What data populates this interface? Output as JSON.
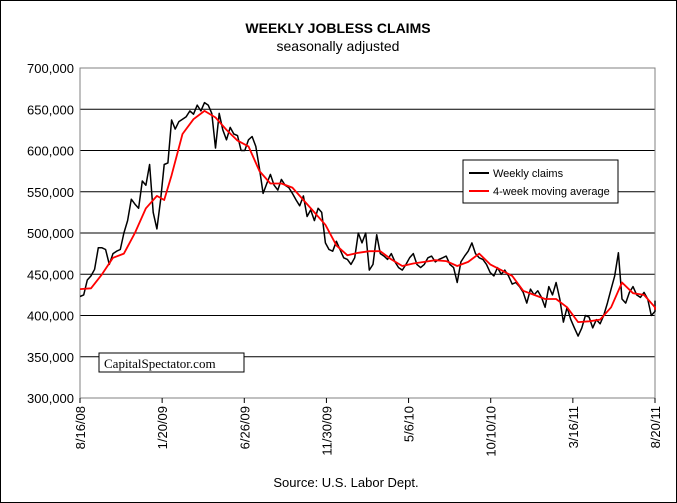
{
  "chart_data": {
    "type": "line",
    "title": "WEEKLY JOBLESS CLAIMS",
    "subtitle": "seasonally adjusted",
    "source": "Source: U.S. Labor Dept.",
    "watermark": "CapitalSpectator.com",
    "ylim": [
      300000,
      700000
    ],
    "yticks": [
      "300,000",
      "350,000",
      "400,000",
      "450,000",
      "500,000",
      "550,000",
      "600,000",
      "650,000",
      "700,000"
    ],
    "ytick_values": [
      300000,
      350000,
      400000,
      450000,
      500000,
      550000,
      600000,
      650000,
      700000
    ],
    "xlim": [
      "2008-08-16",
      "2011-08-20"
    ],
    "xticks": [
      "8/16/08",
      "1/20/09",
      "6/26/09",
      "11/30/09",
      "5/6/10",
      "10/10/10",
      "3/16/11",
      "8/20/11"
    ],
    "xtick_dates": [
      "2008-08-16",
      "2009-01-20",
      "2009-06-26",
      "2009-11-30",
      "2010-05-06",
      "2010-10-10",
      "2011-03-16",
      "2011-08-20"
    ],
    "grid": "horizontal",
    "legend": "right",
    "series": [
      {
        "name": "Weekly claims",
        "color": "#000000",
        "points": [
          [
            "2008-08-16",
            423000
          ],
          [
            "2008-08-23",
            425000
          ],
          [
            "2008-08-30",
            443000
          ],
          [
            "2008-09-06",
            448000
          ],
          [
            "2008-09-13",
            456000
          ],
          [
            "2008-09-20",
            482000
          ],
          [
            "2008-09-27",
            482000
          ],
          [
            "2008-10-04",
            480000
          ],
          [
            "2008-10-11",
            462000
          ],
          [
            "2008-10-18",
            475000
          ],
          [
            "2008-10-25",
            478000
          ],
          [
            "2008-11-01",
            480000
          ],
          [
            "2008-11-08",
            500000
          ],
          [
            "2008-11-15",
            515000
          ],
          [
            "2008-11-22",
            541000
          ],
          [
            "2008-11-29",
            535000
          ],
          [
            "2008-12-06",
            530000
          ],
          [
            "2008-12-13",
            563000
          ],
          [
            "2008-12-20",
            558000
          ],
          [
            "2008-12-27",
            583000
          ],
          [
            "2009-01-03",
            525000
          ],
          [
            "2009-01-10",
            505000
          ],
          [
            "2009-01-17",
            540000
          ],
          [
            "2009-01-24",
            583000
          ],
          [
            "2009-01-31",
            585000
          ],
          [
            "2009-02-07",
            637000
          ],
          [
            "2009-02-14",
            626000
          ],
          [
            "2009-02-21",
            635000
          ],
          [
            "2009-02-28",
            638000
          ],
          [
            "2009-03-07",
            641000
          ],
          [
            "2009-03-14",
            648000
          ],
          [
            "2009-03-21",
            644000
          ],
          [
            "2009-03-28",
            655000
          ],
          [
            "2009-04-04",
            648000
          ],
          [
            "2009-04-11",
            658000
          ],
          [
            "2009-04-18",
            655000
          ],
          [
            "2009-04-25",
            645000
          ],
          [
            "2009-05-02",
            603000
          ],
          [
            "2009-05-09",
            645000
          ],
          [
            "2009-05-16",
            625000
          ],
          [
            "2009-05-23",
            613000
          ],
          [
            "2009-05-30",
            628000
          ],
          [
            "2009-06-06",
            620000
          ],
          [
            "2009-06-13",
            618000
          ],
          [
            "2009-06-20",
            600000
          ],
          [
            "2009-06-27",
            600000
          ],
          [
            "2009-07-04",
            613000
          ],
          [
            "2009-07-11",
            617000
          ],
          [
            "2009-07-18",
            605000
          ],
          [
            "2009-07-25",
            578000
          ],
          [
            "2009-08-01",
            548000
          ],
          [
            "2009-08-08",
            560000
          ],
          [
            "2009-08-15",
            571000
          ],
          [
            "2009-08-22",
            558000
          ],
          [
            "2009-08-29",
            552000
          ],
          [
            "2009-09-05",
            565000
          ],
          [
            "2009-09-12",
            558000
          ],
          [
            "2009-09-19",
            555000
          ],
          [
            "2009-09-26",
            548000
          ],
          [
            "2009-10-03",
            540000
          ],
          [
            "2009-10-10",
            533000
          ],
          [
            "2009-10-17",
            545000
          ],
          [
            "2009-10-24",
            520000
          ],
          [
            "2009-10-31",
            528000
          ],
          [
            "2009-11-07",
            515000
          ],
          [
            "2009-11-14",
            530000
          ],
          [
            "2009-11-21",
            525000
          ],
          [
            "2009-11-28",
            488000
          ],
          [
            "2009-12-05",
            480000
          ],
          [
            "2009-12-12",
            478000
          ],
          [
            "2009-12-19",
            490000
          ],
          [
            "2009-12-26",
            480000
          ],
          [
            "2010-01-02",
            470000
          ],
          [
            "2010-01-09",
            468000
          ],
          [
            "2010-01-16",
            462000
          ],
          [
            "2010-01-23",
            470000
          ],
          [
            "2010-01-30",
            500000
          ],
          [
            "2010-02-06",
            488000
          ],
          [
            "2010-02-13",
            500000
          ],
          [
            "2010-02-20",
            455000
          ],
          [
            "2010-02-27",
            462000
          ],
          [
            "2010-03-06",
            498000
          ],
          [
            "2010-03-13",
            475000
          ],
          [
            "2010-03-20",
            472000
          ],
          [
            "2010-03-27",
            468000
          ],
          [
            "2010-04-03",
            475000
          ],
          [
            "2010-04-10",
            465000
          ],
          [
            "2010-04-17",
            458000
          ],
          [
            "2010-04-24",
            455000
          ],
          [
            "2010-05-01",
            462000
          ],
          [
            "2010-05-08",
            470000
          ],
          [
            "2010-05-15",
            475000
          ],
          [
            "2010-05-22",
            462000
          ],
          [
            "2010-05-29",
            458000
          ],
          [
            "2010-06-05",
            462000
          ],
          [
            "2010-06-12",
            470000
          ],
          [
            "2010-06-19",
            472000
          ],
          [
            "2010-06-26",
            465000
          ],
          [
            "2010-07-03",
            468000
          ],
          [
            "2010-07-10",
            470000
          ],
          [
            "2010-07-17",
            472000
          ],
          [
            "2010-07-24",
            462000
          ],
          [
            "2010-07-31",
            458000
          ],
          [
            "2010-08-07",
            440000
          ],
          [
            "2010-08-14",
            465000
          ],
          [
            "2010-08-21",
            472000
          ],
          [
            "2010-08-28",
            478000
          ],
          [
            "2010-09-04",
            488000
          ],
          [
            "2010-09-11",
            475000
          ],
          [
            "2010-09-18",
            470000
          ],
          [
            "2010-09-25",
            468000
          ],
          [
            "2010-10-02",
            462000
          ],
          [
            "2010-10-09",
            452000
          ],
          [
            "2010-10-16",
            448000
          ],
          [
            "2010-10-23",
            458000
          ],
          [
            "2010-10-30",
            450000
          ],
          [
            "2010-11-06",
            455000
          ],
          [
            "2010-11-13",
            448000
          ],
          [
            "2010-11-20",
            438000
          ],
          [
            "2010-11-27",
            440000
          ],
          [
            "2010-12-04",
            435000
          ],
          [
            "2010-12-11",
            428000
          ],
          [
            "2010-12-18",
            415000
          ],
          [
            "2010-12-25",
            432000
          ],
          [
            "2011-01-01",
            425000
          ],
          [
            "2011-01-08",
            430000
          ],
          [
            "2011-01-15",
            422000
          ],
          [
            "2011-01-22",
            410000
          ],
          [
            "2011-01-29",
            435000
          ],
          [
            "2011-02-05",
            425000
          ],
          [
            "2011-02-12",
            440000
          ],
          [
            "2011-02-19",
            420000
          ],
          [
            "2011-02-26",
            392000
          ],
          [
            "2011-03-05",
            410000
          ],
          [
            "2011-03-12",
            395000
          ],
          [
            "2011-03-19",
            385000
          ],
          [
            "2011-03-26",
            375000
          ],
          [
            "2011-04-02",
            385000
          ],
          [
            "2011-04-09",
            400000
          ],
          [
            "2011-04-16",
            398000
          ],
          [
            "2011-04-23",
            385000
          ],
          [
            "2011-04-30",
            395000
          ],
          [
            "2011-05-07",
            390000
          ],
          [
            "2011-05-14",
            400000
          ],
          [
            "2011-05-21",
            415000
          ],
          [
            "2011-05-28",
            432000
          ],
          [
            "2011-06-04",
            448000
          ],
          [
            "2011-06-11",
            476000
          ],
          [
            "2011-06-18",
            420000
          ],
          [
            "2011-06-25",
            415000
          ],
          [
            "2011-07-02",
            428000
          ],
          [
            "2011-07-09",
            435000
          ],
          [
            "2011-07-16",
            425000
          ],
          [
            "2011-07-23",
            422000
          ],
          [
            "2011-07-30",
            428000
          ],
          [
            "2011-08-06",
            420000
          ],
          [
            "2011-08-13",
            400000
          ],
          [
            "2011-08-20",
            405000
          ],
          [
            "2011-08-27",
            408000
          ],
          [
            "2011-09-03",
            418000
          ]
        ]
      },
      {
        "name": "4-week moving average",
        "color": "#ff0000",
        "points": [
          [
            "2008-08-16",
            432000
          ],
          [
            "2008-09-06",
            433000
          ],
          [
            "2008-09-27",
            450000
          ],
          [
            "2008-10-18",
            470000
          ],
          [
            "2008-11-08",
            475000
          ],
          [
            "2008-11-29",
            500000
          ],
          [
            "2008-12-20",
            530000
          ],
          [
            "2009-01-10",
            545000
          ],
          [
            "2009-01-24",
            540000
          ],
          [
            "2009-02-07",
            570000
          ],
          [
            "2009-02-28",
            620000
          ],
          [
            "2009-03-21",
            638000
          ],
          [
            "2009-04-11",
            648000
          ],
          [
            "2009-05-02",
            640000
          ],
          [
            "2009-05-23",
            625000
          ],
          [
            "2009-06-13",
            612000
          ],
          [
            "2009-07-04",
            605000
          ],
          [
            "2009-07-25",
            575000
          ],
          [
            "2009-08-15",
            560000
          ],
          [
            "2009-09-05",
            560000
          ],
          [
            "2009-09-26",
            555000
          ],
          [
            "2009-10-17",
            540000
          ],
          [
            "2009-11-07",
            525000
          ],
          [
            "2009-11-28",
            510000
          ],
          [
            "2009-12-19",
            485000
          ],
          [
            "2010-01-09",
            473000
          ],
          [
            "2010-01-30",
            476000
          ],
          [
            "2010-02-20",
            478000
          ],
          [
            "2010-03-13",
            478000
          ],
          [
            "2010-04-03",
            468000
          ],
          [
            "2010-04-24",
            460000
          ],
          [
            "2010-05-15",
            463000
          ],
          [
            "2010-06-05",
            465000
          ],
          [
            "2010-06-26",
            467000
          ],
          [
            "2010-07-17",
            466000
          ],
          [
            "2010-08-07",
            460000
          ],
          [
            "2010-08-28",
            465000
          ],
          [
            "2010-09-18",
            475000
          ],
          [
            "2010-10-09",
            462000
          ],
          [
            "2010-10-30",
            455000
          ],
          [
            "2010-11-20",
            448000
          ],
          [
            "2010-12-11",
            430000
          ],
          [
            "2011-01-01",
            425000
          ],
          [
            "2011-01-22",
            420000
          ],
          [
            "2011-02-12",
            420000
          ],
          [
            "2011-03-05",
            410000
          ],
          [
            "2011-03-26",
            392000
          ],
          [
            "2011-04-16",
            393000
          ],
          [
            "2011-05-07",
            395000
          ],
          [
            "2011-05-28",
            410000
          ],
          [
            "2011-06-18",
            440000
          ],
          [
            "2011-07-09",
            427000
          ],
          [
            "2011-07-30",
            425000
          ],
          [
            "2011-08-20",
            410000
          ],
          [
            "2011-09-03",
            407000
          ]
        ]
      }
    ]
  }
}
